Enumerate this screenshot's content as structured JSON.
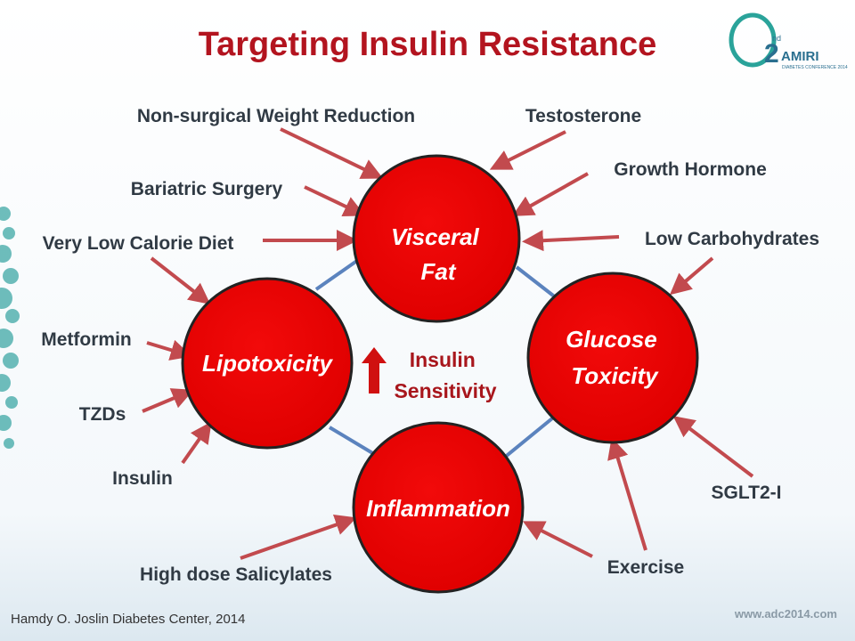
{
  "header": {
    "title": "Targeting Insulin Resistance"
  },
  "logo": {
    "number": "2",
    "superscript": "nd",
    "name": "AMIRI",
    "subtitle": "DIABETES CONFERENCE 2014"
  },
  "nodes": [
    {
      "lines": [
        "Visceral",
        "Fat"
      ]
    },
    {
      "lines": [
        "Lipotoxicity"
      ]
    },
    {
      "lines": [
        "Glucose",
        "Toxicity"
      ]
    },
    {
      "lines": [
        "Inflammation"
      ]
    }
  ],
  "center_label": {
    "lines": [
      "Insulin",
      "Sensitivity"
    ]
  },
  "interventions": [
    "Non-surgical Weight Reduction",
    "Testosterone",
    "Bariatric Surgery",
    "Growth Hormone",
    "Very Low Calorie Diet",
    "Low Carbohydrates",
    "Metformin",
    "TZDs",
    "Insulin",
    "SGLT2-I",
    "High dose Salicylates",
    "Exercise"
  ],
  "footer": {
    "citation": "Hamdy O. Joslin Diabetes Center, 2014",
    "website": "www.adc2014.com"
  }
}
